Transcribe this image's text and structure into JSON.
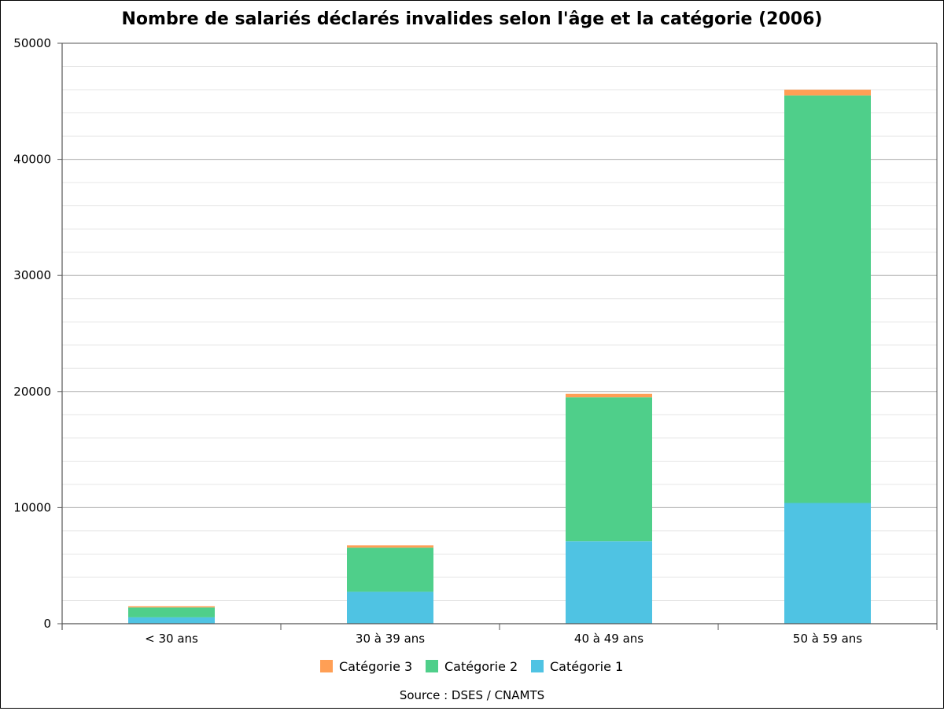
{
  "chart_data": {
    "type": "bar",
    "stacked": true,
    "title": "Nombre de salariés déclarés invalides selon l'âge et la catégorie (2006)",
    "source": "Source : DSES / CNAMTS",
    "categories": [
      "< 30 ans",
      "30 à 39 ans",
      "40 à 49 ans",
      "50 à 59 ans"
    ],
    "series": [
      {
        "name": "Catégorie 1",
        "color": "#4fc3e3",
        "values": [
          550,
          2750,
          7100,
          10400
        ]
      },
      {
        "name": "Catégorie 2",
        "color": "#4fcf8a",
        "values": [
          850,
          3800,
          12400,
          35100
        ]
      },
      {
        "name": "Catégorie 3",
        "color": "#ff9f55",
        "values": [
          100,
          200,
          300,
          500
        ]
      }
    ],
    "legend_order": [
      "Catégorie 3",
      "Catégorie 2",
      "Catégorie 1"
    ],
    "ylim": [
      0,
      50000
    ],
    "yticks": [
      "0",
      "10000",
      "20000",
      "30000",
      "40000",
      "50000"
    ],
    "yticks_values": [
      0,
      10000,
      20000,
      30000,
      40000,
      50000
    ],
    "minor_grid_step": 2000,
    "grid": true,
    "legend_position": "bottom-center",
    "xlabel": "",
    "ylabel": ""
  }
}
